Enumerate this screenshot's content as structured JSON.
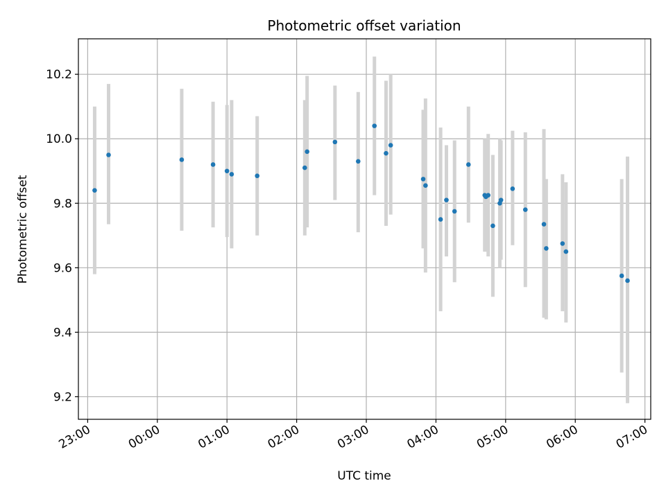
{
  "chart_data": {
    "type": "scatter",
    "title": "Photometric offset variation",
    "xlabel": "UTC time",
    "ylabel": "Photometric offset",
    "xlim": [
      "22:52",
      "07:05"
    ],
    "ylim": [
      9.13,
      10.31
    ],
    "x_ticks": [
      "23:00",
      "00:00",
      "01:00",
      "02:00",
      "03:00",
      "04:00",
      "05:00",
      "06:00",
      "07:00"
    ],
    "y_ticks": [
      "9.2",
      "9.4",
      "9.6",
      "9.8",
      "10.0",
      "10.2"
    ],
    "grid": true,
    "point_color": "#1f77b4",
    "errorbar_color": "#d3d3d3",
    "points": [
      {
        "time": "23:06",
        "y": 9.84,
        "err_low": 9.58,
        "err_high": 10.1
      },
      {
        "time": "23:18",
        "y": 9.95,
        "err_low": 9.735,
        "err_high": 10.17
      },
      {
        "time": "00:21",
        "y": 9.935,
        "err_low": 9.715,
        "err_high": 10.155
      },
      {
        "time": "00:48",
        "y": 9.92,
        "err_low": 9.725,
        "err_high": 10.115
      },
      {
        "time": "01:00",
        "y": 9.9,
        "err_low": 9.695,
        "err_high": 10.105
      },
      {
        "time": "01:04",
        "y": 9.89,
        "err_low": 9.66,
        "err_high": 10.12
      },
      {
        "time": "01:26",
        "y": 9.885,
        "err_low": 9.7,
        "err_high": 10.07
      },
      {
        "time": "02:07",
        "y": 9.91,
        "err_low": 9.7,
        "err_high": 10.12
      },
      {
        "time": "02:09",
        "y": 9.96,
        "err_low": 9.725,
        "err_high": 10.195
      },
      {
        "time": "02:33",
        "y": 9.99,
        "err_low": 9.81,
        "err_high": 10.165
      },
      {
        "time": "02:53",
        "y": 9.93,
        "err_low": 9.71,
        "err_high": 10.145
      },
      {
        "time": "03:07",
        "y": 10.04,
        "err_low": 9.825,
        "err_high": 10.255
      },
      {
        "time": "03:17",
        "y": 9.955,
        "err_low": 9.73,
        "err_high": 10.18
      },
      {
        "time": "03:21",
        "y": 9.98,
        "err_low": 9.765,
        "err_high": 10.2
      },
      {
        "time": "03:49",
        "y": 9.875,
        "err_low": 9.66,
        "err_high": 10.09
      },
      {
        "time": "03:51",
        "y": 9.855,
        "err_low": 9.585,
        "err_high": 10.125
      },
      {
        "time": "04:04",
        "y": 9.75,
        "err_low": 9.465,
        "err_high": 10.035
      },
      {
        "time": "04:09",
        "y": 9.81,
        "err_low": 9.635,
        "err_high": 9.98
      },
      {
        "time": "04:16",
        "y": 9.775,
        "err_low": 9.555,
        "err_high": 9.995
      },
      {
        "time": "04:28",
        "y": 9.92,
        "err_low": 9.74,
        "err_high": 10.1
      },
      {
        "time": "04:42",
        "y": 9.825,
        "err_low": 9.65,
        "err_high": 10.0
      },
      {
        "time": "04:43",
        "y": 9.82,
        "err_low": 9.65,
        "err_high": 10.0
      },
      {
        "time": "04:45",
        "y": 9.825,
        "err_low": 9.635,
        "err_high": 10.015
      },
      {
        "time": "04:49",
        "y": 9.73,
        "err_low": 9.51,
        "err_high": 9.95
      },
      {
        "time": "04:55",
        "y": 9.8,
        "err_low": 9.6,
        "err_high": 10.0
      },
      {
        "time": "04:56",
        "y": 9.81,
        "err_low": 9.625,
        "err_high": 9.995
      },
      {
        "time": "05:06",
        "y": 9.845,
        "err_low": 9.67,
        "err_high": 10.025
      },
      {
        "time": "05:17",
        "y": 9.78,
        "err_low": 9.54,
        "err_high": 10.02
      },
      {
        "time": "05:33",
        "y": 9.735,
        "err_low": 9.445,
        "err_high": 10.03
      },
      {
        "time": "05:35",
        "y": 9.66,
        "err_low": 9.44,
        "err_high": 9.875
      },
      {
        "time": "05:49",
        "y": 9.675,
        "err_low": 9.465,
        "err_high": 9.89
      },
      {
        "time": "05:52",
        "y": 9.65,
        "err_low": 9.43,
        "err_high": 9.865
      },
      {
        "time": "06:40",
        "y": 9.575,
        "err_low": 9.275,
        "err_high": 9.875
      },
      {
        "time": "06:45",
        "y": 9.56,
        "err_low": 9.18,
        "err_high": 9.945
      }
    ]
  }
}
